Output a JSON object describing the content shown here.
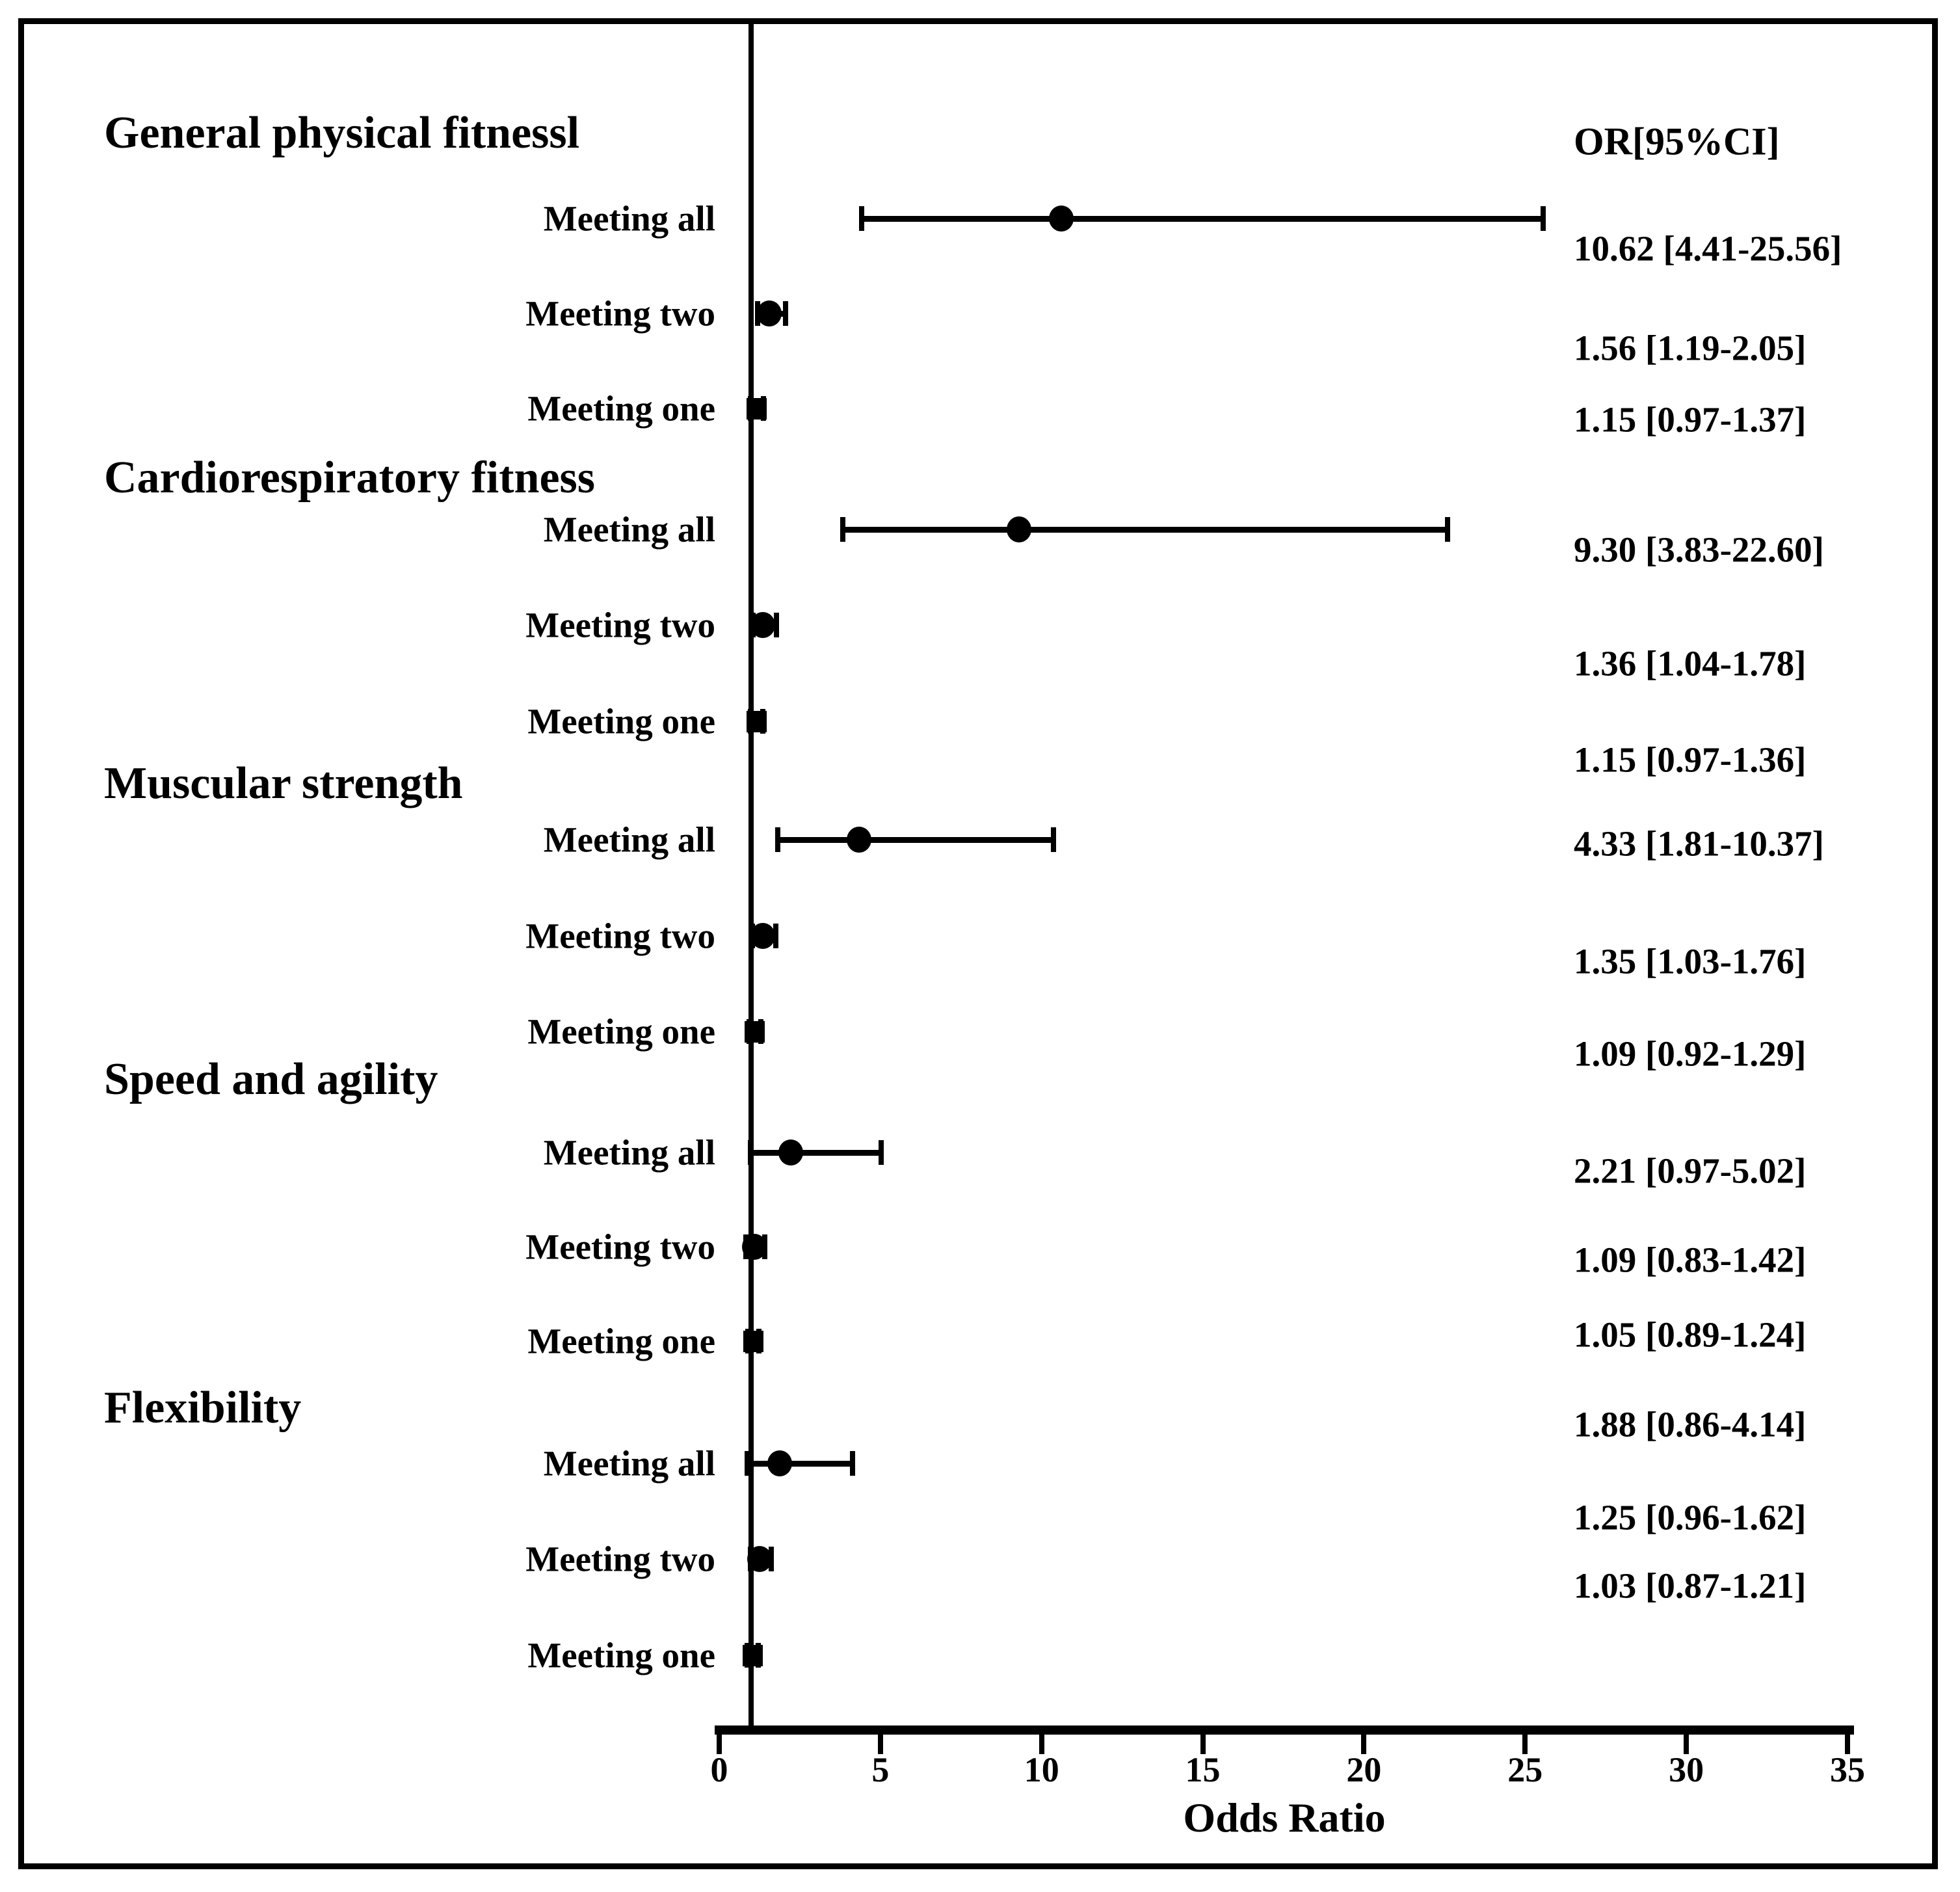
{
  "figure": {
    "or_column_header": "OR[95%CI]",
    "x_axis_label": "Odds Ratio"
  },
  "chart_data": {
    "type": "scatter",
    "variant": "forest-plot",
    "xlabel": "Odds Ratio",
    "or_column_header": "OR[95%CI]",
    "xlim": [
      0,
      35
    ],
    "x_ticks": [
      0,
      5,
      10,
      15,
      20,
      25,
      30,
      35
    ],
    "reference_line_x": 1,
    "grid": false,
    "legend": false,
    "colors": {
      "foreground": "#000000",
      "background": "#ffffff"
    },
    "groups": [
      {
        "label": "General physical fitnessl",
        "rows": [
          {
            "label": "Meeting all",
            "or": 10.62,
            "ci_low": 4.41,
            "ci_high": 25.56,
            "or_text": "10.62 [4.41-25.56]",
            "marker": "circle"
          },
          {
            "label": "Meeting two",
            "or": 1.56,
            "ci_low": 1.19,
            "ci_high": 2.05,
            "or_text": "1.56 [1.19-2.05]",
            "marker": "circle"
          },
          {
            "label": "Meeting one",
            "or": 1.15,
            "ci_low": 0.97,
            "ci_high": 1.37,
            "or_text": "1.15 [0.97-1.37]",
            "marker": "square"
          }
        ]
      },
      {
        "label": "Cardiorespiratory fitness",
        "rows": [
          {
            "label": "Meeting all",
            "or": 9.3,
            "ci_low": 3.83,
            "ci_high": 22.6,
            "or_text": "9.30 [3.83-22.60]",
            "marker": "circle"
          },
          {
            "label": "Meeting two",
            "or": 1.36,
            "ci_low": 1.04,
            "ci_high": 1.78,
            "or_text": "1.36 [1.04-1.78]",
            "marker": "circle"
          },
          {
            "label": "Meeting one",
            "or": 1.15,
            "ci_low": 0.97,
            "ci_high": 1.36,
            "or_text": "1.15 [0.97-1.36]",
            "marker": "square"
          }
        ]
      },
      {
        "label": "Muscular strength",
        "rows": [
          {
            "label": "Meeting all",
            "or": 4.33,
            "ci_low": 1.81,
            "ci_high": 10.37,
            "or_text": "4.33 [1.81-10.37]",
            "marker": "circle"
          },
          {
            "label": "Meeting two",
            "or": 1.35,
            "ci_low": 1.03,
            "ci_high": 1.76,
            "or_text": "1.35 [1.03-1.76]",
            "marker": "circle"
          },
          {
            "label": "Meeting one",
            "or": 1.09,
            "ci_low": 0.92,
            "ci_high": 1.29,
            "or_text": "1.09 [0.92-1.29]",
            "marker": "square"
          }
        ]
      },
      {
        "label": "Speed and agility",
        "rows": [
          {
            "label": "Meeting all",
            "or": 2.21,
            "ci_low": 0.97,
            "ci_high": 5.02,
            "or_text": "2.21 [0.97-5.02]",
            "marker": "circle"
          },
          {
            "label": "Meeting two",
            "or": 1.09,
            "ci_low": 0.83,
            "ci_high": 1.42,
            "or_text": "1.09 [0.83-1.42]",
            "marker": "circle"
          },
          {
            "label": "Meeting one",
            "or": 1.05,
            "ci_low": 0.89,
            "ci_high": 1.24,
            "or_text": "1.05 [0.89-1.24]",
            "marker": "square"
          }
        ]
      },
      {
        "label": "Flexibility",
        "rows": [
          {
            "label": "Meeting all",
            "or": 1.88,
            "ci_low": 0.86,
            "ci_high": 4.14,
            "or_text": "1.88 [0.86-4.14]",
            "marker": "circle"
          },
          {
            "label": "Meeting two",
            "or": 1.25,
            "ci_low": 0.96,
            "ci_high": 1.62,
            "or_text": "1.25 [0.96-1.62]",
            "marker": "circle"
          },
          {
            "label": "Meeting one",
            "or": 1.03,
            "ci_low": 0.87,
            "ci_high": 1.21,
            "or_text": "1.03 [0.87-1.21]",
            "marker": "square"
          }
        ]
      }
    ]
  }
}
